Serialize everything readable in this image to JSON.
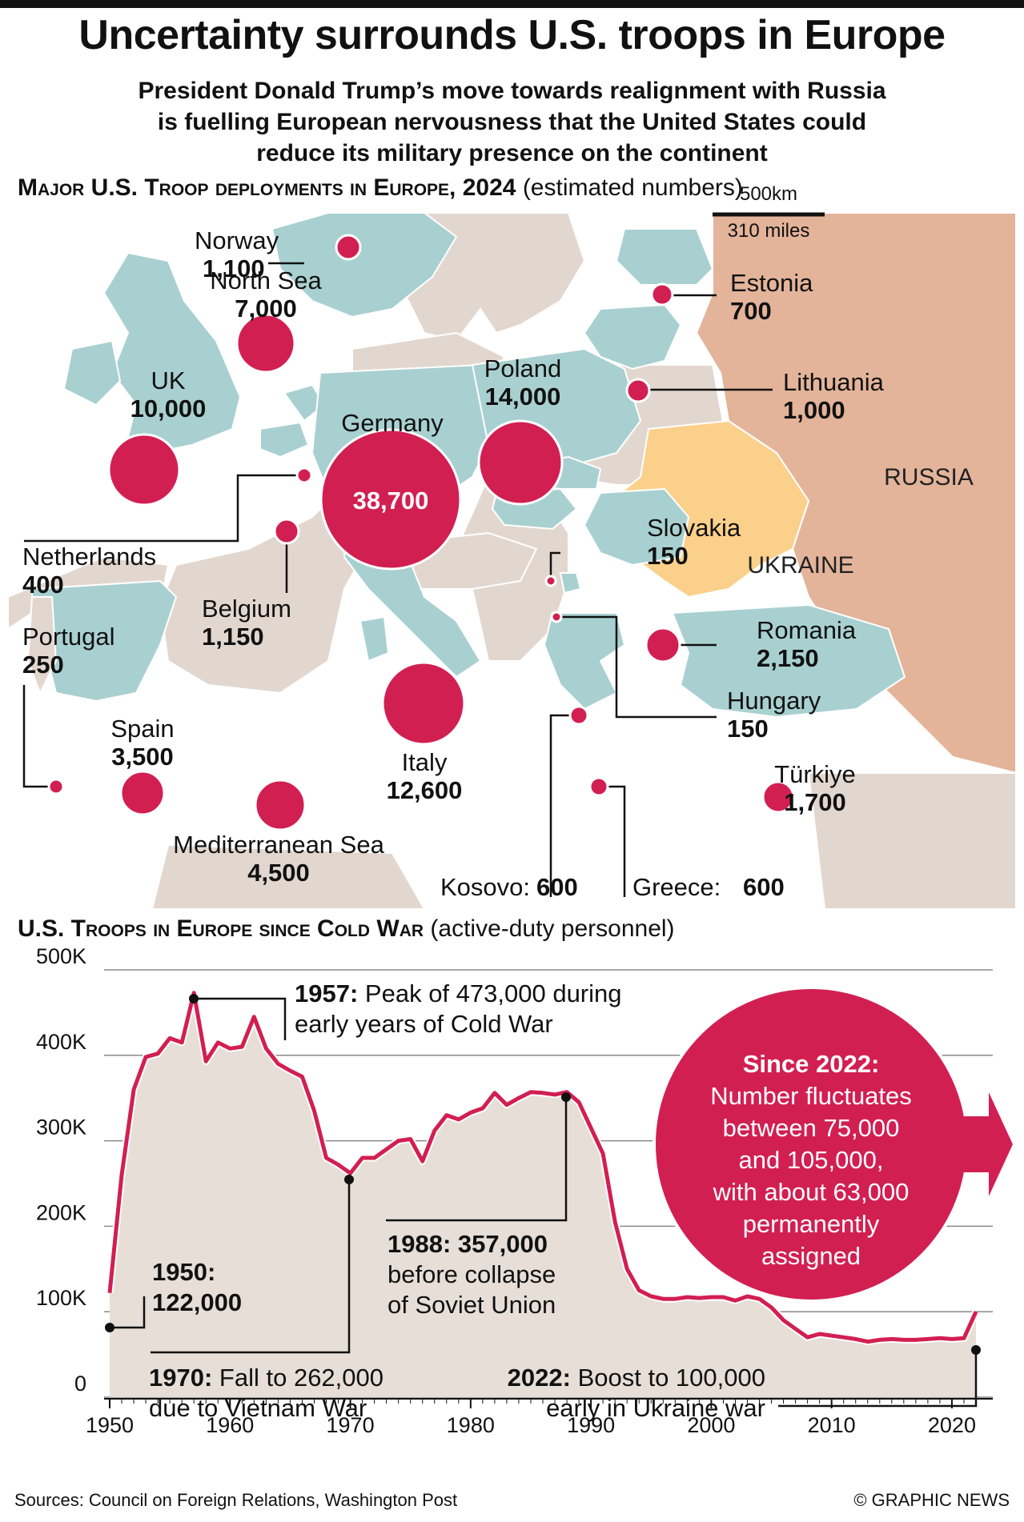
{
  "header": {
    "title": "Uncertainty surrounds U.S. troops in Europe",
    "subtitle_lines": [
      "President Donald Trump’s move towards realignment with Russia",
      "is fuelling European nervousness that the United States could",
      "reduce its military presence on the continent"
    ]
  },
  "map_section": {
    "title": "Major U.S. Troop deployments in Europe, 2024",
    "note": "(estimated numbers)",
    "scale_km": "500km",
    "scale_miles": "310 miles",
    "country_labels": {
      "russia": "RUSSIA",
      "ukraine": "UKRAINE"
    },
    "colors": {
      "bubble": "#d21f52",
      "deploy_country": "#a9d0d0",
      "other_land": "#e2d7cf",
      "russia": "#e3b49a",
      "ukraine": "#fbd08a",
      "sea": "#ffffff"
    }
  },
  "chart_data": [
    {
      "type": "bubble-map",
      "title": "Major U.S. Troop deployments in Europe, 2024",
      "note": "(estimated numbers)",
      "locations": [
        {
          "name": "Norway",
          "value": "1,100"
        },
        {
          "name": "North Sea",
          "value": "7,000"
        },
        {
          "name": "UK",
          "value": "10,000"
        },
        {
          "name": "Germany",
          "value": "38,700"
        },
        {
          "name": "Poland",
          "value": "14,000"
        },
        {
          "name": "Estonia",
          "value": "700"
        },
        {
          "name": "Lithuania",
          "value": "1,000"
        },
        {
          "name": "Netherlands",
          "value": "400"
        },
        {
          "name": "Belgium",
          "value": "1,150"
        },
        {
          "name": "Slovakia",
          "value": "150"
        },
        {
          "name": "Portugal",
          "value": "250"
        },
        {
          "name": "Romania",
          "value": "2,150"
        },
        {
          "name": "Hungary",
          "value": "150"
        },
        {
          "name": "Spain",
          "value": "3,500"
        },
        {
          "name": "Italy",
          "value": "12,600"
        },
        {
          "name": "Türkiye",
          "value": "1,700"
        },
        {
          "name": "Mediterranean Sea",
          "value": "4,500"
        },
        {
          "name": "Kosovo:",
          "value": "600"
        },
        {
          "name": "Greece:",
          "value": "600"
        }
      ]
    },
    {
      "type": "area",
      "title": "U.S. Troops in Europe since Cold War",
      "note": "(active-duty personnel)",
      "x_ticks": [
        "1950",
        "1960",
        "1970",
        "1980",
        "1990",
        "2000",
        "2010",
        "2020"
      ],
      "y_ticks": [
        "500K",
        "400K",
        "300K",
        "200K",
        "100K",
        "0"
      ],
      "ylim": [
        0,
        500000
      ],
      "xlim": [
        1950,
        2022
      ],
      "grid": true,
      "color": "#d21f52",
      "fill": "#e6ded7",
      "series": [
        {
          "x": [
            1950,
            1951,
            1952,
            1953,
            1954,
            1955,
            1956,
            1957,
            1958,
            1959,
            1960,
            1961,
            1962,
            1963,
            1964,
            1965,
            1966,
            1967,
            1968,
            1969,
            1970,
            1971,
            1972,
            1973,
            1974,
            1975,
            1976,
            1977,
            1978,
            1979,
            1980,
            1981,
            1982,
            1983,
            1984,
            1985,
            1986,
            1987,
            1988,
            1989,
            1990,
            1991,
            1992,
            1993,
            1994,
            1995,
            1996,
            1997,
            1998,
            1999,
            2000,
            2001,
            2002,
            2003,
            2004,
            2005,
            2006,
            2007,
            2008,
            2009,
            2010,
            2011,
            2012,
            2013,
            2014,
            2015,
            2016,
            2017,
            2018,
            2019,
            2020,
            2021,
            2022
          ],
          "values": [
            122000,
            260000,
            360000,
            398000,
            402000,
            420000,
            415000,
            473000,
            393000,
            415000,
            408000,
            410000,
            445000,
            408000,
            390000,
            382000,
            375000,
            335000,
            280000,
            272000,
            262000,
            280000,
            280000,
            290000,
            300000,
            302000,
            276000,
            312000,
            330000,
            325000,
            333000,
            338000,
            356000,
            342000,
            350000,
            357000,
            356000,
            354000,
            357000,
            345000,
            315000,
            285000,
            205000,
            150000,
            125000,
            118000,
            115000,
            115000,
            117000,
            116000,
            117000,
            117000,
            113000,
            118000,
            115000,
            105000,
            90000,
            80000,
            70000,
            74000,
            72000,
            70000,
            68000,
            65000,
            67000,
            68000,
            67000,
            67000,
            68000,
            69000,
            68000,
            69000,
            100000
          ]
        }
      ],
      "annotations": [
        {
          "year_bold": "1957:",
          "lines": [
            "Peak of 473,000 during",
            "early years of Cold War"
          ]
        },
        {
          "year_bold": "1950:",
          "lines": [
            "122,000"
          ]
        },
        {
          "year_bold": "1970:",
          "lines": [
            "Fall to 262,000",
            "due to Vietnam War"
          ]
        },
        {
          "year_bold": "1988: 357,000",
          "lines": [
            "before collapse",
            "of Soviet Union"
          ]
        },
        {
          "year_bold": "2022:",
          "lines": [
            "Boost to 100,000",
            "early in Ukraine war"
          ]
        }
      ],
      "callout": {
        "title": "Since 2022:",
        "lines": [
          "Number fluctuates",
          "between 75,000",
          "and 105,000,",
          "with about 63,000",
          "permanently",
          "assigned"
        ]
      }
    }
  ],
  "chart_section": {
    "title": "U.S. Troops in Europe since Cold War",
    "note": "(active-duty personnel)"
  },
  "footer": {
    "sources": "Sources: Council on Foreign Relations, Washington Post",
    "credit": "© GRAPHIC NEWS"
  }
}
